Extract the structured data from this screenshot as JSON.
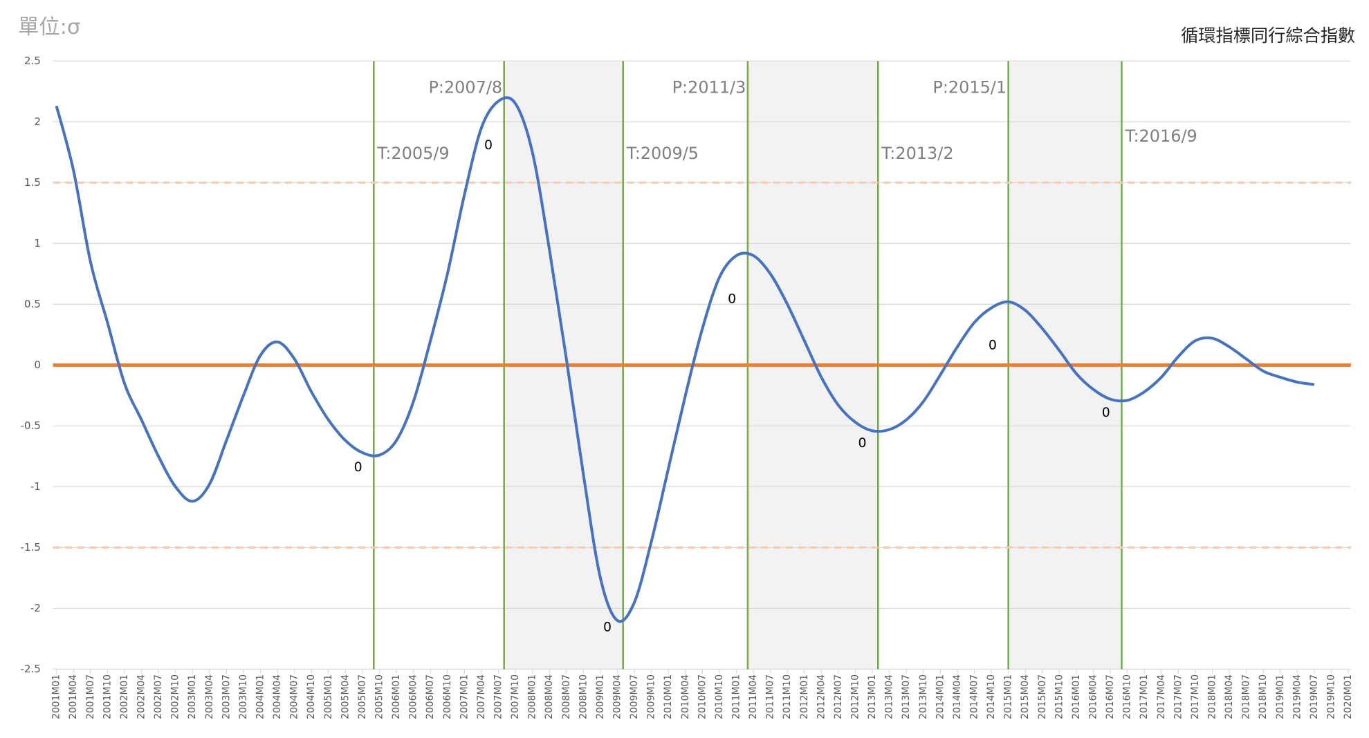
{
  "chart_data": {
    "type": "line",
    "title": "循環指標同行綜合指數",
    "unit_label": "單位:σ",
    "categories": [
      "2001M01",
      "2001M04",
      "2001M07",
      "2001M10",
      "2002M01",
      "2002M04",
      "2002M07",
      "2002M10",
      "2003M01",
      "2003M04",
      "2003M07",
      "2003M10",
      "2004M01",
      "2004M04",
      "2004M07",
      "2004M10",
      "2005M01",
      "2005M04",
      "2005M07",
      "2005M10",
      "2006M01",
      "2006M04",
      "2006M07",
      "2006M10",
      "2007M01",
      "2007M04",
      "2007M07",
      "2007M10",
      "2008M01",
      "2008M04",
      "2008M07",
      "2008M10",
      "2009M01",
      "2009M04",
      "2009M07",
      "2009M10",
      "2010M01",
      "2010M04",
      "2010M07",
      "2010M10",
      "2011M01",
      "2011M04",
      "2011M07",
      "2011M10",
      "2012M01",
      "2012M04",
      "2012M07",
      "2012M10",
      "2013M01",
      "2013M04",
      "2013M07",
      "2013M10",
      "2014M01",
      "2014M04",
      "2014M07",
      "2014M10",
      "2015M01",
      "2015M04",
      "2015M07",
      "2015M10",
      "2016M01",
      "2016M04",
      "2016M07",
      "2016M10",
      "2017M01",
      "2017M04",
      "2017M07",
      "2017M10",
      "2018M01",
      "2018M04",
      "2018M07",
      "2018M10",
      "2019M01",
      "2019M04",
      "2019M07",
      "2019M10",
      "2020M01"
    ],
    "series": [
      {
        "color": "#4472c4",
        "values": [
          2.13,
          1.6,
          0.85,
          0.35,
          -0.15,
          -0.45,
          -0.75,
          -1.0,
          -1.12,
          -0.98,
          -0.62,
          -0.25,
          0.08,
          0.19,
          0.05,
          -0.22,
          -0.45,
          -0.62,
          -0.72,
          -0.74,
          -0.62,
          -0.3,
          0.2,
          0.75,
          1.4,
          1.95,
          2.17,
          2.15,
          1.75,
          0.95,
          0.05,
          -0.9,
          -1.75,
          -2.1,
          -1.95,
          -1.45,
          -0.85,
          -0.25,
          0.3,
          0.72,
          0.9,
          0.9,
          0.75,
          0.5,
          0.2,
          -0.1,
          -0.33,
          -0.47,
          -0.54,
          -0.53,
          -0.45,
          -0.3,
          -0.08,
          0.15,
          0.35,
          0.47,
          0.52,
          0.45,
          0.3,
          0.12,
          -0.07,
          -0.2,
          -0.28,
          -0.29,
          -0.22,
          -0.1,
          0.07,
          0.2,
          0.22,
          0.15,
          0.05,
          -0.05,
          -0.1,
          -0.14,
          -0.16,
          null,
          null
        ]
      }
    ],
    "ylim": [
      -2.5,
      2.5
    ],
    "yticks": [
      2.5,
      2,
      1.5,
      1,
      0.5,
      0,
      -0.5,
      -1,
      -1.5,
      -2,
      -2.5
    ],
    "grid": true,
    "reference_lines": [
      {
        "value": 1.5,
        "color": "#f8cbad",
        "dashed": true
      },
      {
        "value": 0,
        "color": "#ed7d31",
        "dashed": false
      },
      {
        "value": -1.5,
        "color": "#f8cbad",
        "dashed": true
      }
    ],
    "turning_point_color": "#70ad47",
    "shade_color": "#f2f2f2",
    "turning_points": [
      {
        "label": "T:2005/9",
        "marker_text": "0"
      },
      {
        "label": "P:2007/8",
        "marker_text": "0"
      },
      {
        "label": "T:2009/5",
        "marker_text": "0"
      },
      {
        "label": "P:2011/3",
        "marker_text": "0"
      },
      {
        "label": "T:2013/2",
        "marker_text": "0"
      },
      {
        "label": "P:2015/1",
        "marker_text": "0"
      },
      {
        "label": "T:2016/9",
        "marker_text": "0"
      }
    ]
  }
}
